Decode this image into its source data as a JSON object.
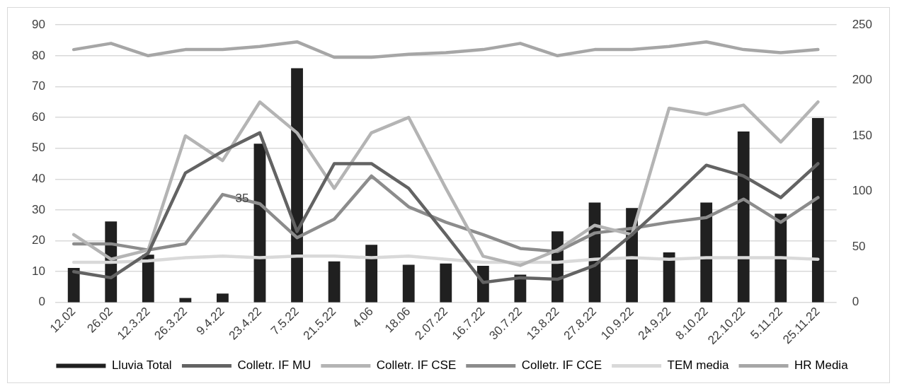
{
  "chart_data": {
    "type": "line",
    "categories": [
      "12.02",
      "26.02",
      "12.3.22",
      "26.3.22",
      "9.4.22",
      "23.4.22",
      "7.5.22",
      "21.5.22",
      "4.06",
      "18.06",
      "2.07.22",
      "16.7.22",
      "30.7.22",
      "13.8.22",
      "27.8.22",
      "10.9.22",
      "24.9.22",
      "8.10.22",
      "22.10.22",
      "5.11.22",
      "25.11.22"
    ],
    "series": [
      {
        "name": "Lluvia Total",
        "type": "bar",
        "axis": "y2",
        "color": "#202020",
        "values": [
          31,
          73,
          43,
          4,
          8,
          143,
          211,
          37,
          52,
          34,
          35,
          33,
          25,
          64,
          90,
          85,
          45,
          90,
          154,
          80,
          166
        ]
      },
      {
        "name": "Colletr. IF MU",
        "color": "#636363",
        "values": [
          10,
          8,
          16,
          42,
          49,
          55,
          23,
          45,
          45,
          37,
          22,
          6.5,
          8,
          7.5,
          12,
          22,
          33,
          44.5,
          41,
          34,
          45
        ]
      },
      {
        "name": "Colletr. IF CSE",
        "color": "#b4b4b4",
        "values": [
          22,
          14,
          17,
          54,
          46,
          65,
          55,
          37,
          55,
          60,
          37,
          15,
          12,
          17,
          25,
          22,
          63,
          61,
          64,
          52,
          65
        ]
      },
      {
        "name": "Colletr. IF CCE",
        "color": "#8c8c8c",
        "values": [
          19,
          19,
          17,
          19,
          35,
          32,
          21,
          27,
          41,
          31,
          26,
          22,
          17.5,
          16.5,
          22.5,
          24,
          26,
          27.5,
          33.5,
          26,
          34
        ]
      },
      {
        "name": "TEM media",
        "color": "#d9d9d9",
        "values": [
          13,
          13,
          13.5,
          14.5,
          15,
          14.5,
          15,
          15,
          14.5,
          15,
          14,
          13,
          13,
          13,
          14,
          14.5,
          14,
          14.5,
          14.5,
          14.5,
          14
        ]
      },
      {
        "name": "HR Media",
        "color": "#a6a6a6",
        "values": [
          82,
          84,
          80,
          82,
          82,
          83,
          84.5,
          79.5,
          79.5,
          80.5,
          81,
          82,
          84,
          80,
          82,
          82,
          83,
          84.5,
          82,
          81,
          82
        ]
      }
    ],
    "annotations": [
      {
        "text": "35",
        "x": "9.4.22",
        "y": 35
      }
    ],
    "ylim": [
      0,
      90
    ],
    "yticks": [
      0,
      10,
      20,
      30,
      40,
      50,
      60,
      70,
      80,
      90
    ],
    "y2lim": [
      0,
      250
    ],
    "y2ticks": [
      0,
      50,
      100,
      150,
      200,
      250
    ],
    "grid": "y",
    "legend": "bottom",
    "marker": "none",
    "line_style": "solid"
  }
}
